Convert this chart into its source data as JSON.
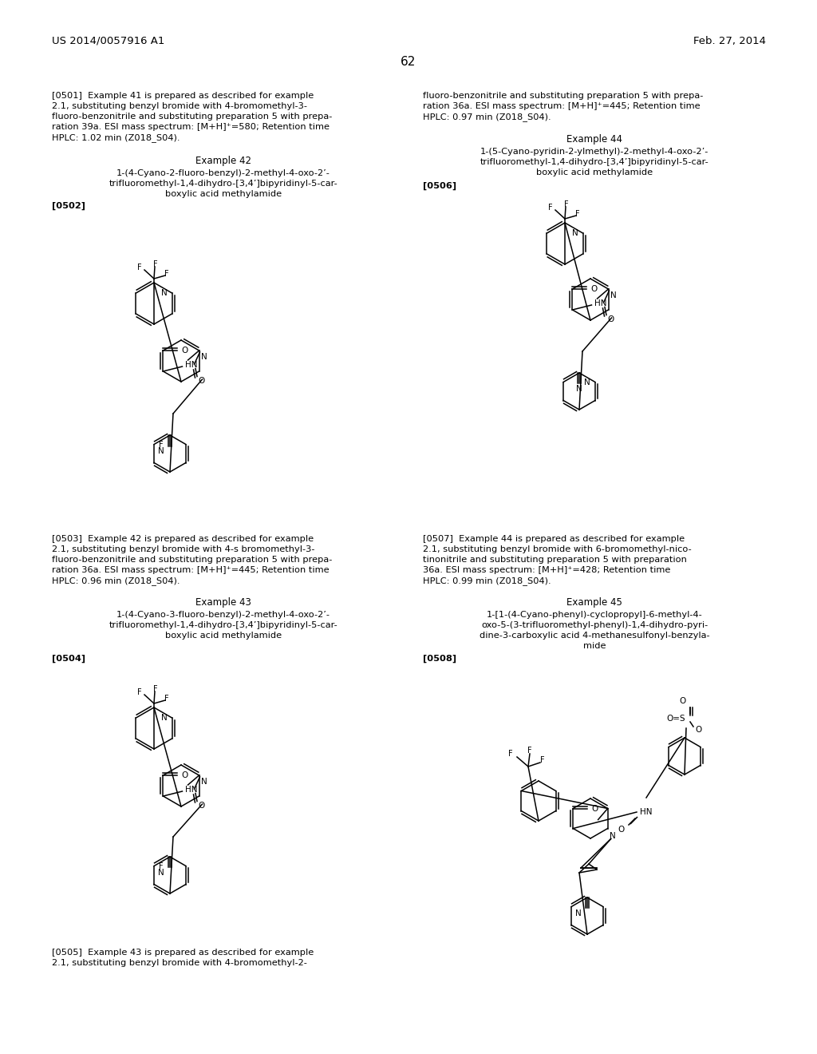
{
  "bg": "#ffffff",
  "header_left": "US 2014/0057916 A1",
  "header_right": "Feb. 27, 2014",
  "page_num": "62",
  "font_body": 8.5,
  "font_header": 9.5
}
